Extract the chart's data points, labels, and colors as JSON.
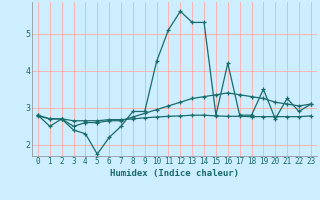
{
  "xlabel": "Humidex (Indice chaleur)",
  "bg_color": "#cceeff",
  "line_color": "#1a6b6b",
  "grid_color": "#ffaaaa",
  "xlim": [
    -0.5,
    23.5
  ],
  "ylim": [
    1.7,
    5.85
  ],
  "yticks": [
    2,
    3,
    4,
    5
  ],
  "xticks": [
    0,
    1,
    2,
    3,
    4,
    5,
    6,
    7,
    8,
    9,
    10,
    11,
    12,
    13,
    14,
    15,
    16,
    17,
    18,
    19,
    20,
    21,
    22,
    23
  ],
  "series": [
    {
      "x": [
        0,
        1,
        2,
        3,
        4,
        5,
        6,
        7,
        8,
        9,
        10,
        11,
        12,
        13,
        14,
        15,
        16,
        17,
        18,
        19,
        20,
        21,
        22,
        23
      ],
      "y": [
        2.8,
        2.5,
        2.7,
        2.4,
        2.3,
        1.75,
        2.2,
        2.5,
        2.9,
        2.9,
        4.25,
        5.1,
        5.6,
        5.3,
        5.3,
        2.8,
        4.2,
        2.8,
        2.8,
        3.5,
        2.7,
        3.25,
        2.9,
        3.1
      ]
    },
    {
      "x": [
        0,
        1,
        2,
        3,
        4,
        5,
        6,
        7,
        8,
        9,
        10,
        11,
        12,
        13,
        14,
        15,
        16,
        17,
        18,
        19,
        20,
        21,
        22,
        23
      ],
      "y": [
        2.8,
        2.7,
        2.7,
        2.5,
        2.6,
        2.6,
        2.65,
        2.65,
        2.75,
        2.85,
        2.95,
        3.05,
        3.15,
        3.25,
        3.3,
        3.35,
        3.4,
        3.35,
        3.3,
        3.25,
        3.15,
        3.1,
        3.05,
        3.1
      ]
    },
    {
      "x": [
        0,
        1,
        2,
        3,
        4,
        5,
        6,
        7,
        8,
        9,
        10,
        11,
        12,
        13,
        14,
        15,
        16,
        17,
        18,
        19,
        20,
        21,
        22,
        23
      ],
      "y": [
        2.78,
        2.7,
        2.7,
        2.65,
        2.65,
        2.65,
        2.68,
        2.68,
        2.7,
        2.73,
        2.75,
        2.77,
        2.78,
        2.8,
        2.8,
        2.78,
        2.77,
        2.77,
        2.76,
        2.76,
        2.76,
        2.76,
        2.76,
        2.78
      ]
    }
  ]
}
